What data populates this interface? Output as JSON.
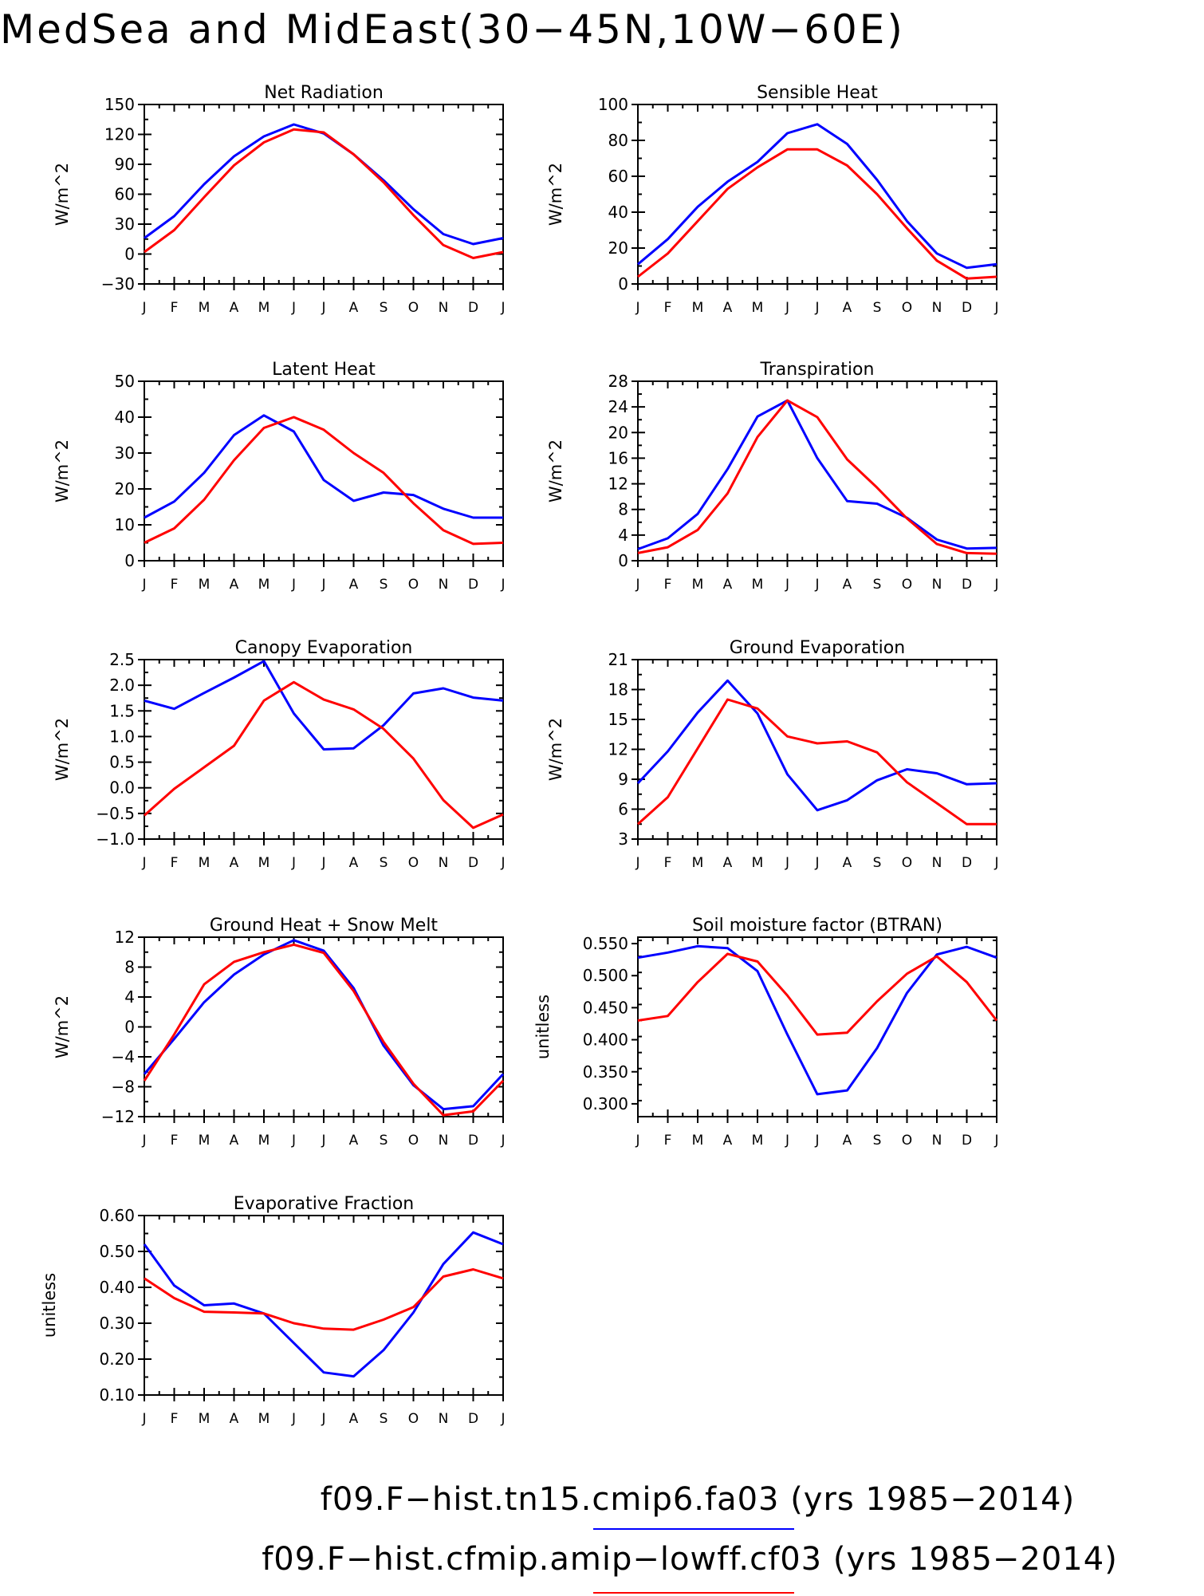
{
  "figure_title": "MedSea and MidEast(30−45N,10W−60E)",
  "legend": [
    {
      "label": "f09.F−hist.tn15.cmip6.fa03 (yrs 1985−2014)",
      "color": "#0000ff"
    },
    {
      "label": "f09.F−hist.cfmip.amip−lowff.cf03 (yrs 1985−2014)",
      "color": "#ff0000"
    }
  ],
  "colors": {
    "series_1": "#0000ff",
    "series_2": "#ff0000"
  },
  "chart_data": [
    {
      "type": "line",
      "title": "Net Radiation",
      "ylabel": "W/m^2",
      "ylim": [
        -30,
        150
      ],
      "yticks": [
        -30,
        0,
        30,
        60,
        90,
        120,
        150
      ],
      "ytick_labels": [
        "−30",
        "0",
        "30",
        "60",
        "90",
        "120",
        "150"
      ],
      "x": [
        "J",
        "F",
        "M",
        "A",
        "M",
        "J",
        "J",
        "A",
        "S",
        "O",
        "N",
        "D",
        "J"
      ],
      "series": [
        {
          "color": "#0000ff",
          "values": [
            16,
            38,
            70,
            98,
            118,
            130,
            121,
            100,
            74,
            45,
            20,
            10,
            16
          ]
        },
        {
          "color": "#ff0000",
          "values": [
            2,
            24,
            57,
            89,
            112,
            125,
            122,
            100,
            72,
            39,
            9,
            -4,
            2
          ]
        }
      ]
    },
    {
      "type": "line",
      "title": "Sensible Heat",
      "ylabel": "W/m^2",
      "ylim": [
        0,
        100
      ],
      "yticks": [
        0,
        20,
        40,
        60,
        80,
        100
      ],
      "ytick_labels": [
        "0",
        "20",
        "40",
        "60",
        "80",
        "100"
      ],
      "x": [
        "J",
        "F",
        "M",
        "A",
        "M",
        "J",
        "J",
        "A",
        "S",
        "O",
        "N",
        "D",
        "J"
      ],
      "series": [
        {
          "color": "#0000ff",
          "values": [
            11,
            25,
            43,
            57,
            68,
            84,
            89,
            78,
            58,
            35,
            17,
            9,
            11
          ]
        },
        {
          "color": "#ff0000",
          "values": [
            4,
            17,
            35,
            53,
            65,
            75,
            75,
            66,
            50,
            31,
            13,
            3,
            4
          ]
        }
      ]
    },
    {
      "type": "line",
      "title": "Latent Heat",
      "ylabel": "W/m^2",
      "ylim": [
        0,
        50
      ],
      "yticks": [
        0,
        10,
        20,
        30,
        40,
        50
      ],
      "ytick_labels": [
        "0",
        "10",
        "20",
        "30",
        "40",
        "50"
      ],
      "x": [
        "J",
        "F",
        "M",
        "A",
        "M",
        "J",
        "J",
        "A",
        "S",
        "O",
        "N",
        "D",
        "J"
      ],
      "series": [
        {
          "color": "#0000ff",
          "values": [
            12,
            16.5,
            24.5,
            35,
            40.5,
            36,
            22.5,
            16.7,
            19,
            18.3,
            14.5,
            12,
            12
          ]
        },
        {
          "color": "#ff0000",
          "values": [
            5,
            9,
            17,
            28,
            37,
            40,
            36.5,
            30,
            24.5,
            16,
            8.5,
            4.7,
            5
          ]
        }
      ]
    },
    {
      "type": "line",
      "title": "Transpiration",
      "ylabel": "W/m^2",
      "ylim": [
        0,
        28
      ],
      "yticks": [
        0,
        4,
        8,
        12,
        16,
        20,
        24,
        28
      ],
      "ytick_labels": [
        "0",
        "4",
        "8",
        "12",
        "16",
        "20",
        "24",
        "28"
      ],
      "x": [
        "J",
        "F",
        "M",
        "A",
        "M",
        "J",
        "J",
        "A",
        "S",
        "O",
        "N",
        "D",
        "J"
      ],
      "series": [
        {
          "color": "#0000ff",
          "values": [
            1.8,
            3.5,
            7.3,
            14.3,
            22.5,
            25,
            16,
            9.3,
            8.9,
            6.7,
            3.3,
            1.9,
            2
          ]
        },
        {
          "color": "#ff0000",
          "values": [
            1.2,
            2.1,
            4.8,
            10.5,
            19.3,
            25,
            22.4,
            15.8,
            11.4,
            6.6,
            2.6,
            1.2,
            1.1
          ]
        }
      ]
    },
    {
      "type": "line",
      "title": "Canopy Evaporation",
      "ylabel": "W/m^2",
      "ylim": [
        -1.0,
        2.5
      ],
      "yticks": [
        -1.0,
        -0.5,
        0.0,
        0.5,
        1.0,
        1.5,
        2.0,
        2.5
      ],
      "ytick_labels": [
        "−1.0",
        "−0.5",
        "0.0",
        "0.5",
        "1.0",
        "1.5",
        "2.0",
        "2.5"
      ],
      "x": [
        "J",
        "F",
        "M",
        "A",
        "M",
        "J",
        "J",
        "A",
        "S",
        "O",
        "N",
        "D",
        "J"
      ],
      "series": [
        {
          "color": "#0000ff",
          "values": [
            1.7,
            1.54,
            1.85,
            2.15,
            2.47,
            1.45,
            0.75,
            0.77,
            1.22,
            1.84,
            1.94,
            1.76,
            1.7
          ]
        },
        {
          "color": "#ff0000",
          "values": [
            -0.54,
            -0.02,
            0.4,
            0.82,
            1.7,
            2.06,
            1.72,
            1.53,
            1.15,
            0.57,
            -0.24,
            -0.78,
            -0.52
          ]
        }
      ]
    },
    {
      "type": "line",
      "title": "Ground Evaporation",
      "ylabel": "W/m^2",
      "ylim": [
        3,
        21
      ],
      "yticks": [
        3,
        6,
        9,
        12,
        15,
        18,
        21
      ],
      "ytick_labels": [
        "3",
        "6",
        "9",
        "12",
        "15",
        "18",
        "21"
      ],
      "x": [
        "J",
        "F",
        "M",
        "A",
        "M",
        "J",
        "J",
        "A",
        "S",
        "O",
        "N",
        "D",
        "J"
      ],
      "series": [
        {
          "color": "#0000ff",
          "values": [
            8.6,
            11.8,
            15.7,
            18.9,
            15.6,
            9.5,
            5.9,
            6.9,
            8.9,
            10,
            9.6,
            8.5,
            8.6
          ]
        },
        {
          "color": "#ff0000",
          "values": [
            4.5,
            7.2,
            12.1,
            17,
            16.1,
            13.3,
            12.6,
            12.8,
            11.7,
            8.7,
            6.6,
            4.5,
            4.5
          ]
        }
      ]
    },
    {
      "type": "line",
      "title": "Ground Heat + Snow Melt",
      "ylabel": "W/m^2",
      "ylim": [
        -12,
        12
      ],
      "yticks": [
        -12,
        -8,
        -4,
        0,
        4,
        8,
        12
      ],
      "ytick_labels": [
        "−12",
        "−8",
        "−4",
        "0",
        "4",
        "8",
        "12"
      ],
      "x": [
        "J",
        "F",
        "M",
        "A",
        "M",
        "J",
        "J",
        "A",
        "S",
        "O",
        "N",
        "D",
        "J"
      ],
      "series": [
        {
          "color": "#0000ff",
          "values": [
            -6.3,
            -1.6,
            3.3,
            7,
            9.7,
            11.6,
            10.2,
            5.2,
            -2.5,
            -7.8,
            -11,
            -10.6,
            -6.3
          ]
        },
        {
          "color": "#ff0000",
          "values": [
            -7.2,
            -1,
            5.7,
            8.7,
            10,
            11,
            9.9,
            4.8,
            -2,
            -7.6,
            -11.8,
            -11.3,
            -7.2
          ]
        }
      ]
    },
    {
      "type": "line",
      "title": "Soil moisture factor (BTRAN)",
      "ylabel": "unitless",
      "ylim": [
        0.28,
        0.56
      ],
      "yticks": [
        0.3,
        0.35,
        0.4,
        0.45,
        0.5,
        0.55
      ],
      "ytick_labels": [
        "0.300",
        "0.350",
        "0.400",
        "0.450",
        "0.500",
        "0.550"
      ],
      "x": [
        "J",
        "F",
        "M",
        "A",
        "M",
        "J",
        "J",
        "A",
        "S",
        "O",
        "N",
        "D",
        "J"
      ],
      "series": [
        {
          "color": "#0000ff",
          "values": [
            0.528,
            0.536,
            0.546,
            0.543,
            0.507,
            0.408,
            0.315,
            0.321,
            0.387,
            0.473,
            0.533,
            0.545,
            0.528
          ]
        },
        {
          "color": "#ff0000",
          "values": [
            0.43,
            0.437,
            0.49,
            0.534,
            0.522,
            0.469,
            0.408,
            0.411,
            0.46,
            0.503,
            0.53,
            0.49,
            0.43
          ]
        }
      ]
    },
    {
      "type": "line",
      "title": "Evaporative Fraction",
      "ylabel": "unitless",
      "ylim": [
        0.1,
        0.6
      ],
      "yticks": [
        0.1,
        0.2,
        0.3,
        0.4,
        0.5,
        0.6
      ],
      "ytick_labels": [
        "0.10",
        "0.20",
        "0.30",
        "0.40",
        "0.50",
        "0.60"
      ],
      "x": [
        "J",
        "F",
        "M",
        "A",
        "M",
        "J",
        "J",
        "A",
        "S",
        "O",
        "N",
        "D",
        "J"
      ],
      "series": [
        {
          "color": "#0000ff",
          "values": [
            0.52,
            0.405,
            0.35,
            0.355,
            0.327,
            0.245,
            0.163,
            0.152,
            0.225,
            0.33,
            0.465,
            0.553,
            0.52
          ]
        },
        {
          "color": "#ff0000",
          "values": [
            0.425,
            0.37,
            0.332,
            0.33,
            0.327,
            0.3,
            0.285,
            0.282,
            0.31,
            0.345,
            0.43,
            0.45,
            0.425
          ]
        }
      ]
    }
  ]
}
